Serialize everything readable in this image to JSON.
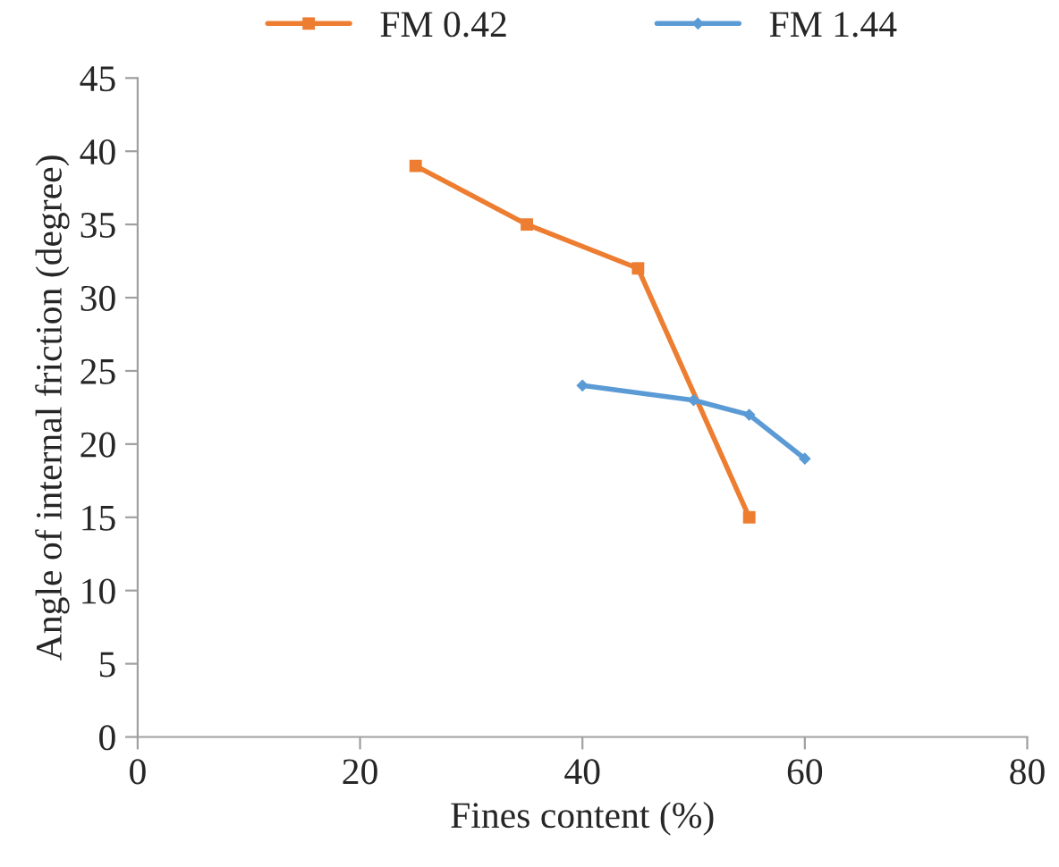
{
  "chart_data": {
    "type": "line",
    "xlabel": "Fines content (%)",
    "ylabel": "Angle of internal friction (degree)",
    "series": [
      {
        "name": "FM 0.42",
        "color": "#ed7d31",
        "marker": "square",
        "x": [
          25,
          35,
          45,
          55
        ],
        "values": [
          39,
          35,
          32,
          15
        ]
      },
      {
        "name": "FM 1.44",
        "color": "#5b9bd5",
        "marker": "diamond",
        "x": [
          40,
          50,
          55,
          60
        ],
        "values": [
          24,
          23,
          22,
          19
        ]
      }
    ],
    "xlim": [
      0,
      80
    ],
    "xticks": [
      0,
      20,
      40,
      60,
      80
    ],
    "ylim": [
      0,
      45
    ],
    "yticks": [
      0,
      5,
      10,
      15,
      20,
      25,
      30,
      35,
      40,
      45
    ],
    "grid": false,
    "legend": "top"
  }
}
